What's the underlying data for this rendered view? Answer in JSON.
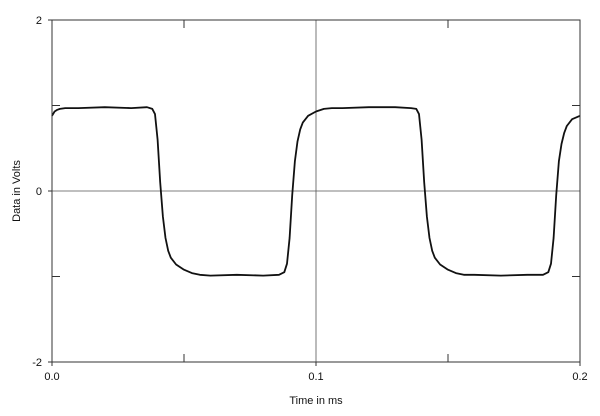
{
  "chart_data": {
    "type": "line",
    "title": "",
    "xlabel": "Time in ms",
    "ylabel": "Data in Volts",
    "xlim": [
      0,
      0.2
    ],
    "ylim": [
      -2,
      2
    ],
    "grid": "center-cross",
    "xticks": [
      {
        "value": 0.0,
        "label": "0.0"
      },
      {
        "value": 0.1,
        "label": "0.1"
      },
      {
        "value": 0.2,
        "label": "0.2"
      }
    ],
    "yticks": [
      {
        "value": 2,
        "label": "2"
      },
      {
        "value": 0,
        "label": "0"
      },
      {
        "value": -2,
        "label": "-2"
      }
    ],
    "x_minor_ticks": [
      0.05,
      0.15
    ],
    "y_minor_ticks": [
      1,
      -1
    ],
    "colors": {
      "line": "#111111",
      "axis": "#333333"
    },
    "series": [
      {
        "x": [
          0.0,
          0.001,
          0.002,
          0.003,
          0.005,
          0.01,
          0.02,
          0.03,
          0.036,
          0.038,
          0.039,
          0.04,
          0.041,
          0.042,
          0.043,
          0.044,
          0.045,
          0.047,
          0.05,
          0.053,
          0.056,
          0.06,
          0.07,
          0.08,
          0.086,
          0.088,
          0.089,
          0.09,
          0.091,
          0.092,
          0.093,
          0.094,
          0.095,
          0.097,
          0.1,
          0.103,
          0.106,
          0.11,
          0.12,
          0.13,
          0.136,
          0.138,
          0.139,
          0.14,
          0.141,
          0.142,
          0.143,
          0.144,
          0.145,
          0.147,
          0.15,
          0.153,
          0.156,
          0.16,
          0.17,
          0.18,
          0.186,
          0.188,
          0.189,
          0.19,
          0.191,
          0.192,
          0.193,
          0.194,
          0.195,
          0.197,
          0.2
        ],
        "y": [
          0.88,
          0.93,
          0.95,
          0.96,
          0.97,
          0.97,
          0.98,
          0.97,
          0.98,
          0.96,
          0.9,
          0.6,
          0.1,
          -0.3,
          -0.55,
          -0.7,
          -0.78,
          -0.86,
          -0.92,
          -0.96,
          -0.98,
          -0.99,
          -0.98,
          -0.99,
          -0.98,
          -0.95,
          -0.85,
          -0.55,
          -0.05,
          0.35,
          0.58,
          0.72,
          0.8,
          0.88,
          0.93,
          0.96,
          0.97,
          0.97,
          0.98,
          0.98,
          0.97,
          0.96,
          0.9,
          0.6,
          0.1,
          -0.3,
          -0.55,
          -0.7,
          -0.78,
          -0.86,
          -0.92,
          -0.96,
          -0.98,
          -0.98,
          -0.99,
          -0.98,
          -0.98,
          -0.95,
          -0.85,
          -0.55,
          -0.05,
          0.35,
          0.55,
          0.68,
          0.76,
          0.84,
          0.88
        ]
      }
    ]
  }
}
